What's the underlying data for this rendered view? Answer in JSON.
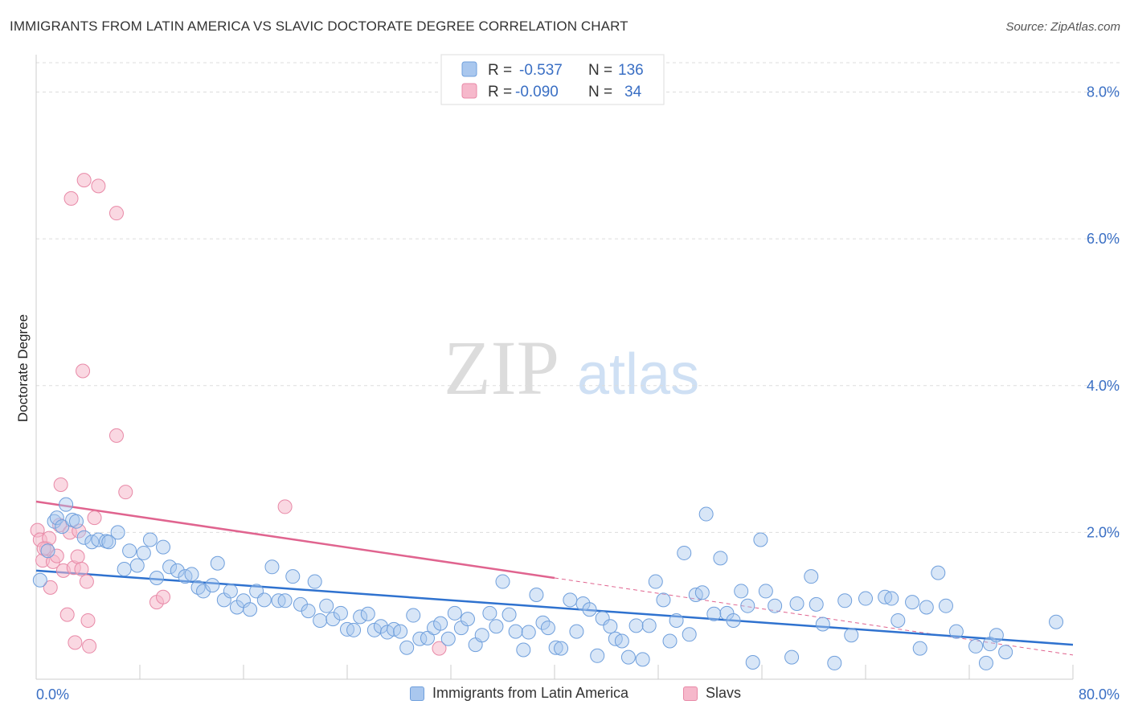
{
  "header": {
    "title": "IMMIGRANTS FROM LATIN AMERICA VS SLAVIC DOCTORATE DEGREE CORRELATION CHART",
    "source": "Source: ZipAtlas.com"
  },
  "watermark": {
    "zip": "ZIP",
    "atlas": "atlas"
  },
  "legend": {
    "rows": [
      {
        "r_label": "R =",
        "r_value": "-0.537",
        "n_label": "N =",
        "n_value": "136"
      },
      {
        "r_label": "R =",
        "r_value": "-0.090",
        "n_label": "N =",
        "n_value": "34"
      }
    ]
  },
  "bottom_legend": {
    "series1": "Immigrants from Latin America",
    "series2": "Slavs"
  },
  "colors": {
    "blue_fill": "#a9c7ee",
    "blue_stroke": "#6f9fdc",
    "blue_line": "#2f72cf",
    "pink_fill": "#f6b8cb",
    "pink_stroke": "#e889a7",
    "pink_line": "#e0648f",
    "axis_text": "#3a6fc4",
    "grid": "#dddddd"
  },
  "chart_data": {
    "type": "scatter",
    "title": "IMMIGRANTS FROM LATIN AMERICA VS SLAVIC DOCTORATE DEGREE CORRELATION CHART",
    "xlabel": "",
    "ylabel": "Doctorate Degree",
    "xlim": [
      0,
      80
    ],
    "ylim": [
      0,
      8.4
    ],
    "x_tick_labels": [
      "0.0%",
      "80.0%"
    ],
    "y_ticks": [
      2,
      4,
      6,
      8
    ],
    "y_tick_labels": [
      "2.0%",
      "4.0%",
      "6.0%",
      "8.0%"
    ],
    "grid": true,
    "legend_position": "top-center",
    "series": [
      {
        "name": "Immigrants from Latin America",
        "color": "#6f9fdc",
        "r": -0.537,
        "n": 136,
        "trend": {
          "x": [
            0,
            80
          ],
          "y": [
            1.48,
            0.47
          ]
        },
        "points": [
          [
            0.3,
            1.35
          ],
          [
            0.9,
            1.75
          ],
          [
            1.4,
            2.15
          ],
          [
            1.6,
            2.2
          ],
          [
            2.0,
            2.08
          ],
          [
            2.3,
            2.38
          ],
          [
            2.8,
            2.17
          ],
          [
            3.1,
            2.15
          ],
          [
            3.7,
            1.93
          ],
          [
            4.3,
            1.87
          ],
          [
            4.8,
            1.9
          ],
          [
            5.4,
            1.88
          ],
          [
            5.6,
            1.87
          ],
          [
            6.3,
            2.0
          ],
          [
            6.8,
            1.5
          ],
          [
            7.2,
            1.75
          ],
          [
            7.8,
            1.55
          ],
          [
            8.3,
            1.72
          ],
          [
            8.8,
            1.9
          ],
          [
            9.3,
            1.38
          ],
          [
            9.8,
            1.8
          ],
          [
            10.3,
            1.53
          ],
          [
            10.9,
            1.48
          ],
          [
            11.5,
            1.4
          ],
          [
            12.0,
            1.43
          ],
          [
            12.5,
            1.25
          ],
          [
            12.9,
            1.2
          ],
          [
            13.6,
            1.28
          ],
          [
            14.0,
            1.58
          ],
          [
            14.5,
            1.08
          ],
          [
            15.0,
            1.2
          ],
          [
            15.5,
            0.98
          ],
          [
            16.0,
            1.07
          ],
          [
            16.5,
            0.95
          ],
          [
            17.0,
            1.2
          ],
          [
            17.6,
            1.08
          ],
          [
            18.2,
            1.53
          ],
          [
            18.7,
            1.07
          ],
          [
            19.2,
            1.07
          ],
          [
            19.8,
            1.4
          ],
          [
            20.4,
            1.02
          ],
          [
            21.0,
            0.93
          ],
          [
            21.5,
            1.33
          ],
          [
            21.9,
            0.8
          ],
          [
            22.4,
            1.0
          ],
          [
            22.9,
            0.82
          ],
          [
            23.5,
            0.9
          ],
          [
            24.0,
            0.68
          ],
          [
            24.5,
            0.67
          ],
          [
            25.0,
            0.85
          ],
          [
            25.6,
            0.89
          ],
          [
            26.1,
            0.67
          ],
          [
            26.6,
            0.72
          ],
          [
            27.1,
            0.64
          ],
          [
            27.6,
            0.68
          ],
          [
            28.1,
            0.65
          ],
          [
            28.6,
            0.43
          ],
          [
            29.1,
            0.87
          ],
          [
            29.6,
            0.55
          ],
          [
            30.2,
            0.56
          ],
          [
            30.7,
            0.7
          ],
          [
            31.2,
            0.76
          ],
          [
            31.8,
            0.55
          ],
          [
            32.3,
            0.9
          ],
          [
            32.8,
            0.7
          ],
          [
            33.3,
            0.82
          ],
          [
            33.9,
            0.47
          ],
          [
            34.4,
            0.6
          ],
          [
            35.0,
            0.9
          ],
          [
            35.5,
            0.72
          ],
          [
            36.0,
            1.33
          ],
          [
            36.5,
            0.88
          ],
          [
            37.0,
            0.65
          ],
          [
            37.6,
            0.4
          ],
          [
            38.0,
            0.64
          ],
          [
            38.6,
            1.15
          ],
          [
            39.1,
            0.77
          ],
          [
            39.5,
            0.7
          ],
          [
            40.1,
            0.43
          ],
          [
            40.5,
            0.42
          ],
          [
            41.2,
            1.08
          ],
          [
            41.7,
            0.65
          ],
          [
            42.2,
            1.03
          ],
          [
            42.7,
            0.95
          ],
          [
            43.3,
            0.32
          ],
          [
            43.7,
            0.83
          ],
          [
            44.3,
            0.72
          ],
          [
            44.7,
            0.55
          ],
          [
            45.2,
            0.52
          ],
          [
            45.7,
            0.3
          ],
          [
            46.3,
            0.73
          ],
          [
            46.8,
            0.27
          ],
          [
            47.3,
            0.73
          ],
          [
            47.8,
            1.33
          ],
          [
            48.4,
            1.08
          ],
          [
            48.9,
            0.52
          ],
          [
            49.4,
            0.8
          ],
          [
            50.0,
            1.72
          ],
          [
            50.4,
            0.61
          ],
          [
            50.9,
            1.15
          ],
          [
            51.4,
            1.18
          ],
          [
            51.7,
            2.25
          ],
          [
            52.3,
            0.89
          ],
          [
            52.8,
            1.65
          ],
          [
            53.3,
            0.9
          ],
          [
            53.8,
            0.8
          ],
          [
            54.4,
            1.2
          ],
          [
            54.9,
            1.0
          ],
          [
            55.3,
            0.23
          ],
          [
            55.9,
            1.9
          ],
          [
            56.3,
            1.2
          ],
          [
            57.0,
            1.0
          ],
          [
            58.3,
            0.3
          ],
          [
            58.7,
            1.03
          ],
          [
            59.8,
            1.4
          ],
          [
            60.2,
            1.02
          ],
          [
            60.7,
            0.75
          ],
          [
            61.6,
            0.22
          ],
          [
            62.4,
            1.07
          ],
          [
            62.9,
            0.6
          ],
          [
            64.0,
            1.1
          ],
          [
            65.5,
            1.12
          ],
          [
            66.0,
            1.1
          ],
          [
            66.5,
            0.8
          ],
          [
            67.6,
            1.05
          ],
          [
            68.2,
            0.42
          ],
          [
            68.7,
            0.98
          ],
          [
            69.6,
            1.45
          ],
          [
            70.2,
            1.0
          ],
          [
            71.0,
            0.65
          ],
          [
            72.5,
            0.45
          ],
          [
            73.3,
            0.22
          ],
          [
            73.6,
            0.48
          ],
          [
            74.1,
            0.6
          ],
          [
            74.8,
            0.37
          ],
          [
            78.7,
            0.78
          ]
        ]
      },
      {
        "name": "Slavs",
        "color": "#e889a7",
        "r": -0.09,
        "n": 34,
        "trend": {
          "x": [
            0,
            40
          ],
          "y": [
            2.42,
            1.38
          ]
        },
        "trend_extension": {
          "x": [
            40,
            80
          ],
          "y": [
            1.38,
            0.33
          ]
        },
        "points": [
          [
            0.1,
            2.03
          ],
          [
            0.3,
            1.9
          ],
          [
            0.5,
            1.62
          ],
          [
            0.8,
            1.78
          ],
          [
            1.0,
            1.92
          ],
          [
            1.1,
            1.25
          ],
          [
            1.3,
            1.6
          ],
          [
            1.6,
            1.68
          ],
          [
            1.8,
            2.1
          ],
          [
            1.9,
            2.65
          ],
          [
            2.1,
            1.48
          ],
          [
            2.4,
            0.88
          ],
          [
            2.6,
            2.0
          ],
          [
            2.7,
            6.55
          ],
          [
            2.9,
            1.52
          ],
          [
            3.0,
            0.5
          ],
          [
            3.2,
            1.67
          ],
          [
            3.3,
            2.02
          ],
          [
            3.5,
            1.5
          ],
          [
            3.6,
            4.2
          ],
          [
            3.7,
            6.8
          ],
          [
            3.9,
            1.33
          ],
          [
            4.0,
            0.8
          ],
          [
            4.1,
            0.45
          ],
          [
            4.5,
            2.2
          ],
          [
            4.8,
            6.72
          ],
          [
            6.2,
            6.35
          ],
          [
            6.2,
            3.32
          ],
          [
            6.9,
            2.55
          ],
          [
            9.3,
            1.05
          ],
          [
            9.8,
            1.12
          ],
          [
            19.2,
            2.35
          ],
          [
            31.1,
            0.42
          ],
          [
            0.6,
            1.78
          ]
        ]
      }
    ]
  }
}
